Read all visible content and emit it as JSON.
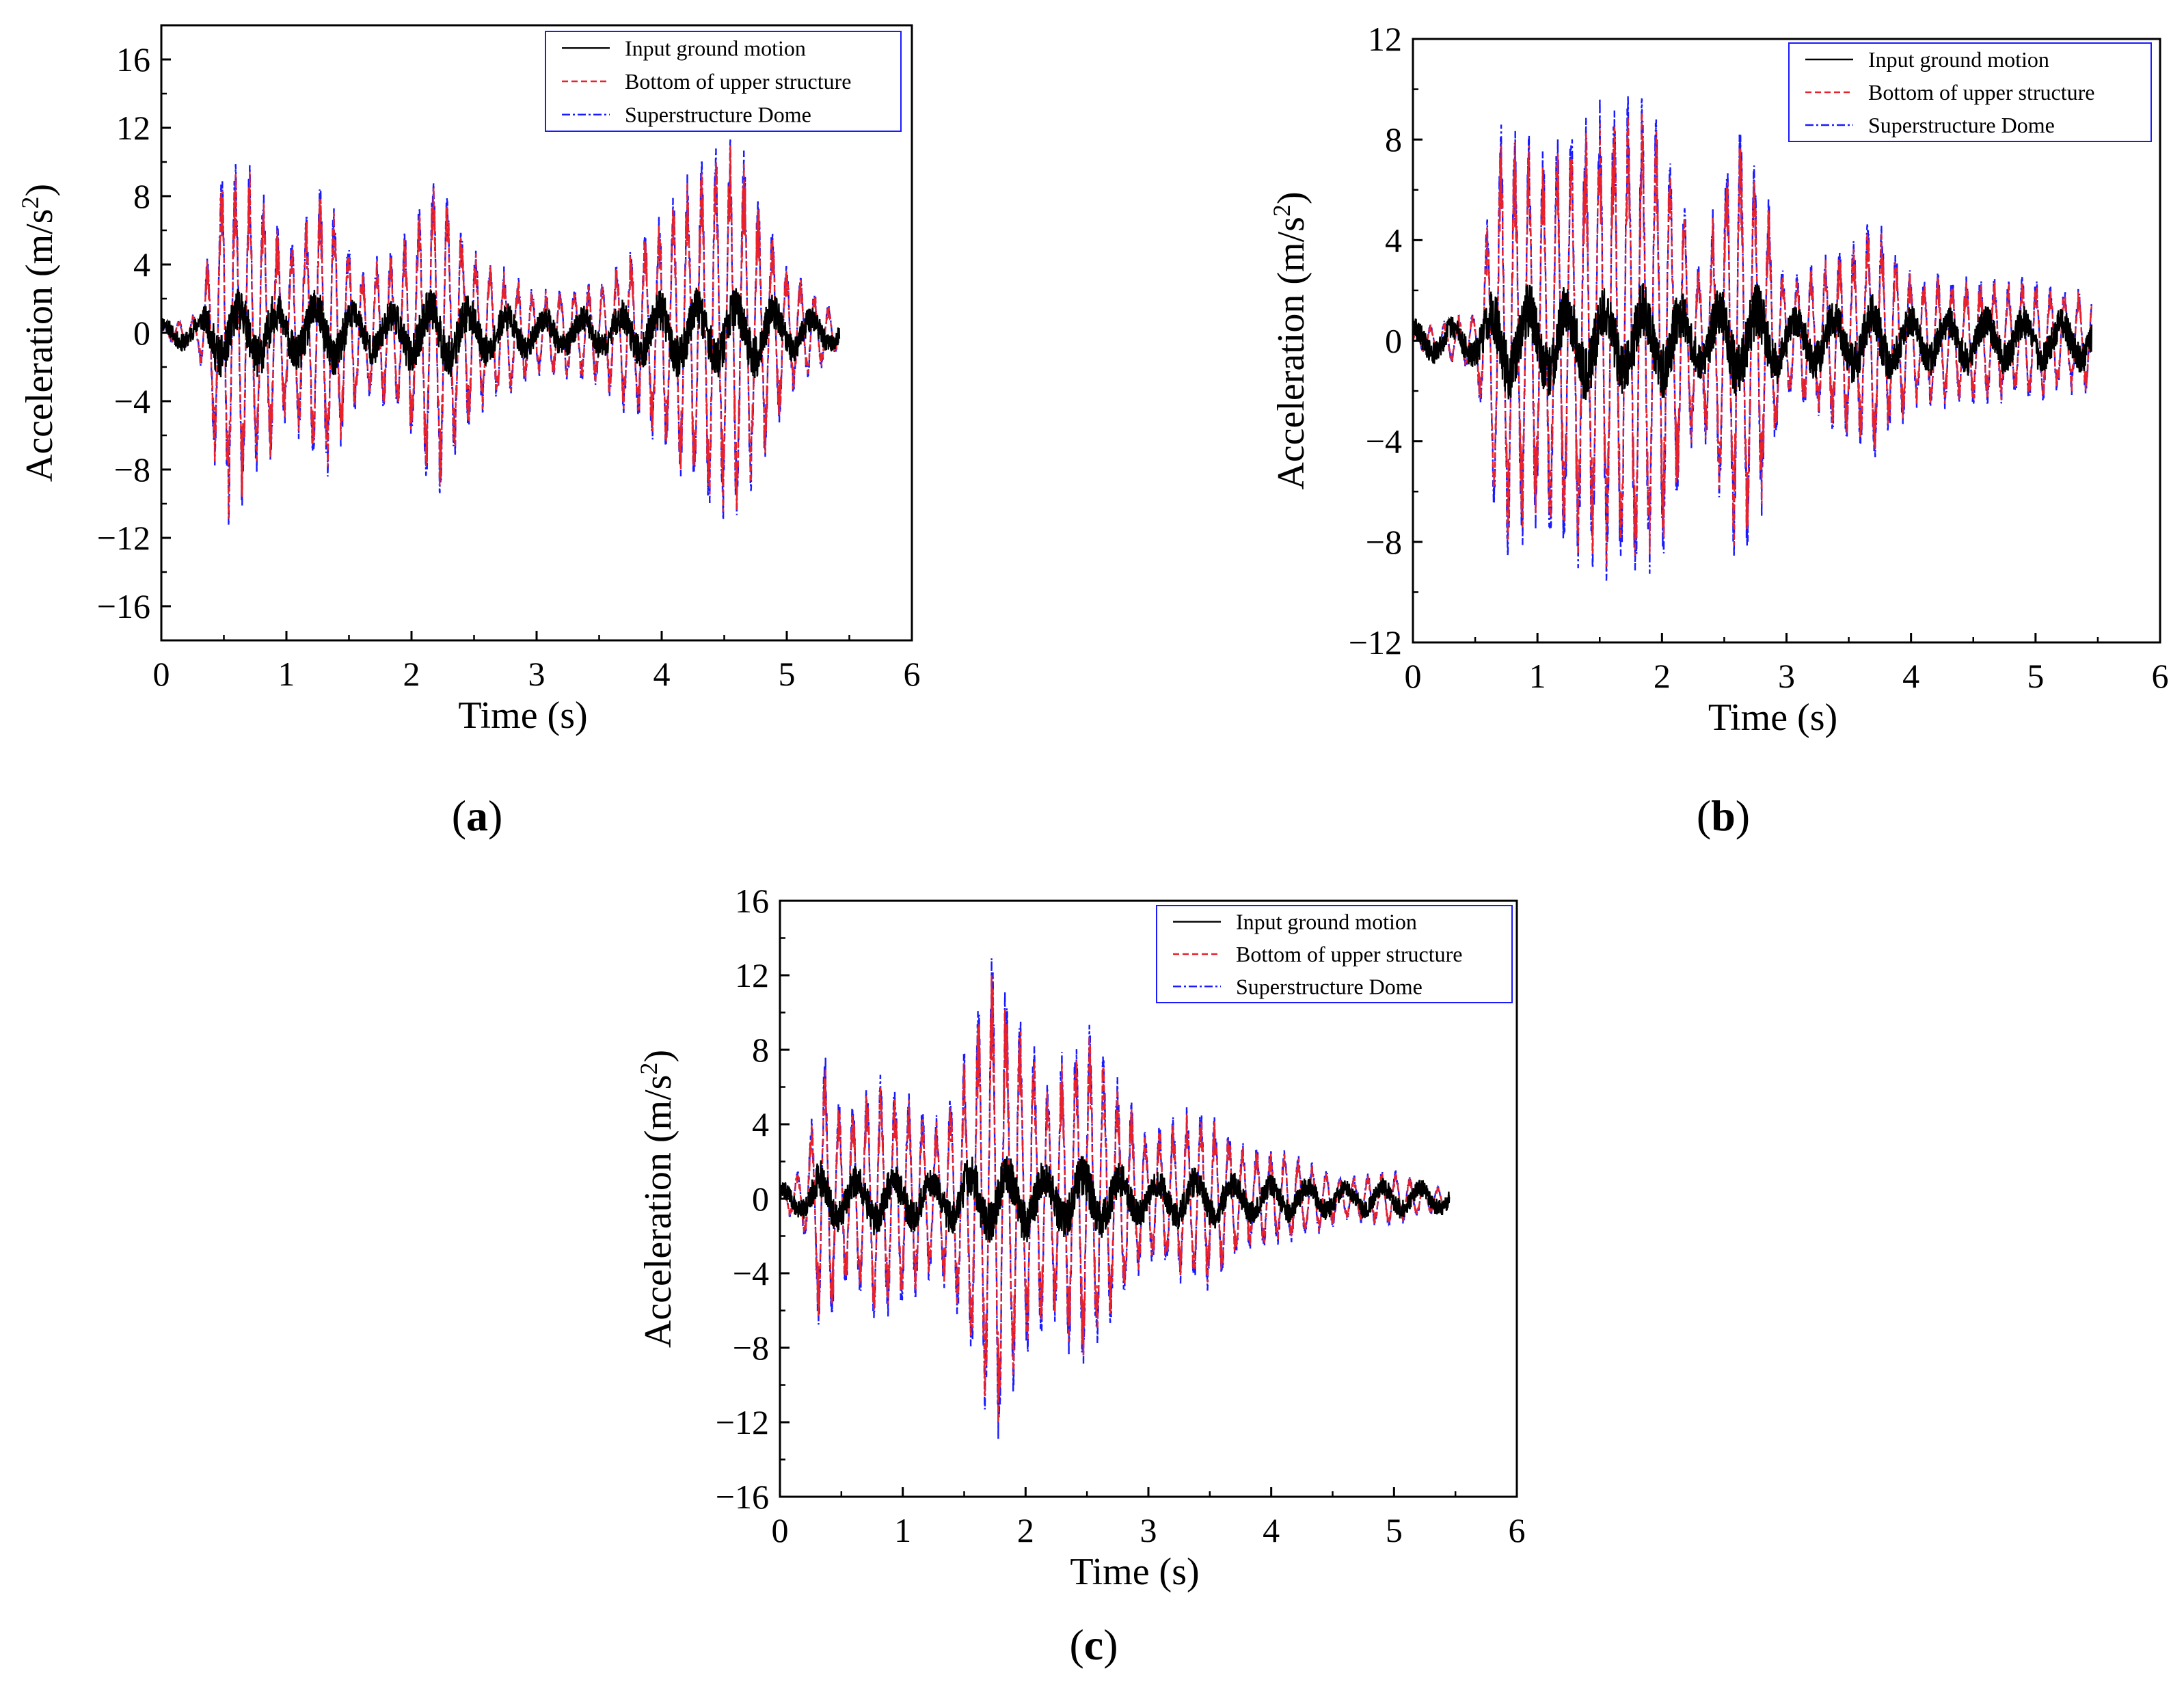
{
  "figure": {
    "legend_entries": [
      "Input ground motion",
      "Bottom of upper structure",
      "Superstructure Dome"
    ],
    "series_colors": {
      "input": "#000000",
      "bottom": "#e8212b",
      "dome": "#1a1aff"
    }
  },
  "chart_data": [
    {
      "type": "line",
      "caption_paren_open": "(",
      "caption_letter": "a",
      "caption_paren_close": ")",
      "xlabel": "Time (s)",
      "ylabel_main": "Acceleration (m/s",
      "ylabel_sup": "2",
      "ylabel_close": ")",
      "xlim": [
        0,
        6
      ],
      "ylim": [
        -18,
        18
      ],
      "xticks": [
        "0",
        "1",
        "2",
        "3",
        "4",
        "5",
        "6"
      ],
      "yticks": [
        "16",
        "12",
        "8",
        "4",
        "0",
        "−4",
        "−8",
        "−12",
        "−16"
      ],
      "ytick_values": [
        16,
        12,
        8,
        4,
        0,
        -4,
        -8,
        -12,
        -16
      ],
      "duration": 5.42,
      "series": [
        {
          "name": "Input ground motion",
          "key": "input",
          "peak": 2.8
        },
        {
          "name": "Bottom of upper structure",
          "key": "bottom",
          "peak": 11.6
        },
        {
          "name": "Superstructure Dome",
          "key": "dome",
          "peak": 11.9
        }
      ],
      "envelope": [
        [
          0,
          0.3
        ],
        [
          0.3,
          1.2
        ],
        [
          0.5,
          11.5
        ],
        [
          0.8,
          9
        ],
        [
          1.0,
          5
        ],
        [
          1.3,
          9
        ],
        [
          1.6,
          4
        ],
        [
          1.9,
          5
        ],
        [
          2.2,
          10
        ],
        [
          2.5,
          5
        ],
        [
          3.0,
          2.5
        ],
        [
          3.5,
          3
        ],
        [
          4.0,
          7
        ],
        [
          4.3,
          10
        ],
        [
          4.6,
          11.5
        ],
        [
          5.0,
          4
        ],
        [
          5.42,
          1
        ]
      ]
    },
    {
      "type": "line",
      "caption_paren_open": "(",
      "caption_letter": "b",
      "caption_paren_close": ")",
      "xlabel": "Time (s)",
      "ylabel_main": "Acceleration (m/s",
      "ylabel_sup": "2",
      "ylabel_close": ")",
      "xlim": [
        0,
        6
      ],
      "ylim": [
        -12,
        12
      ],
      "xticks": [
        "0",
        "1",
        "2",
        "3",
        "4",
        "5",
        "6"
      ],
      "yticks": [
        "12",
        "8",
        "4",
        "0",
        "−4",
        "−8",
        "−12"
      ],
      "ytick_values": [
        12,
        8,
        4,
        0,
        -4,
        -8,
        -12
      ],
      "duration": 5.45,
      "series": [
        {
          "name": "Input ground motion",
          "key": "input",
          "peak": 2.5
        },
        {
          "name": "Bottom of upper structure",
          "key": "bottom",
          "peak": 10.2
        },
        {
          "name": "Superstructure Dome",
          "key": "dome",
          "peak": 10.7
        }
      ],
      "envelope": [
        [
          0,
          0.4
        ],
        [
          0.5,
          1.2
        ],
        [
          0.7,
          9
        ],
        [
          1.0,
          8
        ],
        [
          1.2,
          8.5
        ],
        [
          1.5,
          9.5
        ],
        [
          1.8,
          10.5
        ],
        [
          2.0,
          9
        ],
        [
          2.3,
          3
        ],
        [
          2.6,
          9.5
        ],
        [
          2.8,
          7
        ],
        [
          3.0,
          2.5
        ],
        [
          3.5,
          4
        ],
        [
          3.7,
          5
        ],
        [
          4.0,
          2.8
        ],
        [
          4.5,
          2.6
        ],
        [
          5.0,
          2.5
        ],
        [
          5.45,
          2
        ]
      ]
    },
    {
      "type": "line",
      "caption_paren_open": "(",
      "caption_letter": "c",
      "caption_paren_close": ")",
      "xlabel": "Time (s)",
      "ylabel_main": "Acceleration (m/s",
      "ylabel_sup": "2",
      "ylabel_close": ")",
      "xlim": [
        0,
        6
      ],
      "ylim": [
        -16,
        16
      ],
      "xticks": [
        "0",
        "1",
        "2",
        "3",
        "4",
        "5",
        "6"
      ],
      "yticks": [
        "16",
        "12",
        "8",
        "4",
        "0",
        "−4",
        "−8",
        "−12",
        "−16"
      ],
      "ytick_values": [
        16,
        12,
        8,
        4,
        0,
        -4,
        -8,
        -12,
        -16
      ],
      "duration": 5.45,
      "series": [
        {
          "name": "Input ground motion",
          "key": "input",
          "peak": 2.6
        },
        {
          "name": "Bottom of upper structure",
          "key": "bottom",
          "peak": 13.8
        },
        {
          "name": "Superstructure Dome",
          "key": "dome",
          "peak": 14.5
        }
      ],
      "envelope": [
        [
          0,
          0.4
        ],
        [
          0.2,
          2
        ],
        [
          0.35,
          8.5
        ],
        [
          0.5,
          5
        ],
        [
          0.8,
          7
        ],
        [
          1.0,
          6
        ],
        [
          1.3,
          4.5
        ],
        [
          1.5,
          8
        ],
        [
          1.75,
          14.5
        ],
        [
          2.0,
          9
        ],
        [
          2.2,
          7
        ],
        [
          2.5,
          10
        ],
        [
          2.8,
          6
        ],
        [
          3.0,
          3.5
        ],
        [
          3.4,
          5.5
        ],
        [
          3.8,
          3
        ],
        [
          4.2,
          2.5
        ],
        [
          4.6,
          1.2
        ],
        [
          5.0,
          1.6
        ],
        [
          5.45,
          0.4
        ]
      ]
    }
  ]
}
